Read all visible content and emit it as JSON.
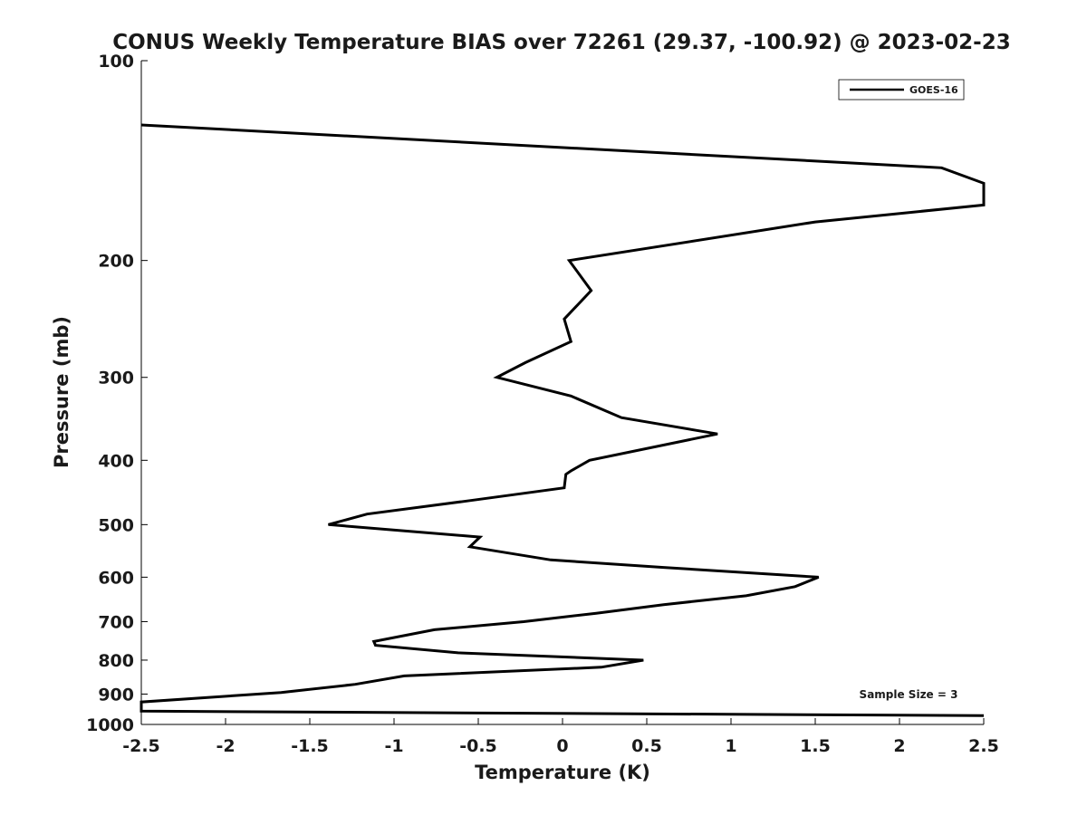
{
  "chart_data": {
    "type": "line",
    "title": "CONUS Weekly Temperature BIAS over 72261 (29.37, -100.92) @ 2023-02-23",
    "xlabel": "Temperature (K)",
    "ylabel": "Pressure (mb)",
    "xlim": [
      -2.5,
      2.5
    ],
    "ylim": [
      100,
      1000
    ],
    "y_scale": "log",
    "y_reversed": true,
    "grid": false,
    "x_ticks": [
      -2.5,
      -2,
      -1.5,
      -1,
      -0.5,
      0,
      0.5,
      1,
      1.5,
      2,
      2.5
    ],
    "x_tick_labels": [
      "-2.5",
      "-2",
      "-1.5",
      "-1",
      "-0.5",
      "0",
      "0.5",
      "1",
      "1.5",
      "2",
      "2.5"
    ],
    "y_ticks": [
      100,
      200,
      300,
      400,
      500,
      600,
      700,
      800,
      900,
      1000
    ],
    "y_tick_labels": [
      "100",
      "200",
      "300",
      "400",
      "500",
      "600",
      "700",
      "800",
      "900",
      "1000"
    ],
    "legend": {
      "position": "top-right",
      "entries": [
        "GOES-16"
      ]
    },
    "annotation": "Sample Size = 3",
    "series": [
      {
        "name": "GOES-16",
        "color": "#000000",
        "x": [
          -2.5,
          2.25,
          2.5,
          2.5,
          1.5,
          0.04,
          0.17,
          0.01,
          0.05,
          -0.22,
          -0.39,
          0.05,
          0.35,
          0.92,
          0.16,
          0.05,
          0.02,
          0.01,
          -0.55,
          -1.16,
          -1.39,
          -0.49,
          -0.55,
          -0.07,
          0.6,
          1.52,
          1.38,
          1.09,
          0.6,
          0.2,
          -0.23,
          -0.76,
          -1.12,
          -1.11,
          -0.62,
          0.48,
          0.23,
          -0.94,
          -1.23,
          -1.67,
          -2.5,
          -2.5,
          2.5
        ],
        "y": [
          125,
          145,
          153,
          165,
          175,
          200,
          222,
          245,
          265,
          285,
          300,
          320,
          345,
          365,
          400,
          415,
          420,
          440,
          460,
          482,
          500,
          522,
          540,
          565,
          580,
          600,
          620,
          640,
          660,
          680,
          700,
          720,
          750,
          760,
          780,
          800,
          820,
          845,
          870,
          895,
          925,
          955,
          970
        ]
      }
    ]
  }
}
